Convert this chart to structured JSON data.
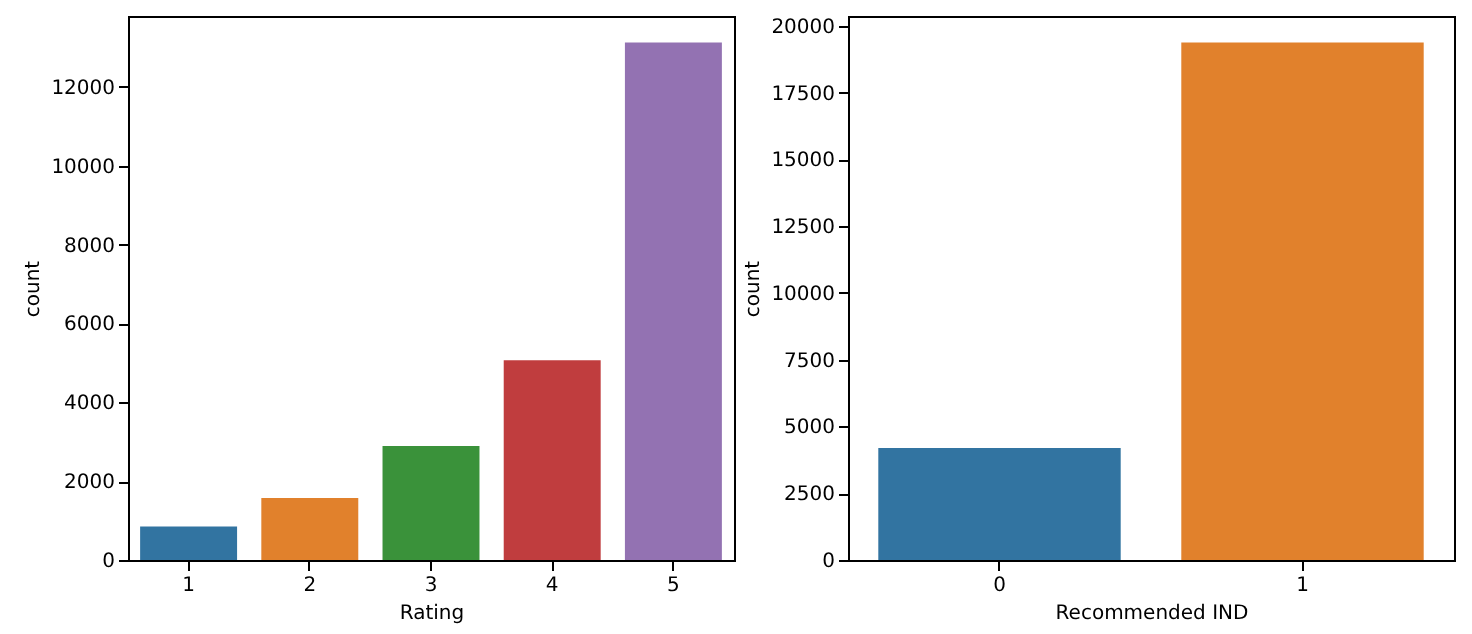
{
  "chart_data": [
    {
      "type": "bar",
      "categories": [
        "1",
        "2",
        "3",
        "4",
        "5"
      ],
      "values": [
        850,
        1570,
        2890,
        5070,
        13130
      ],
      "colors": [
        "#3274a1",
        "#e1812c",
        "#3a923a",
        "#c03d3e",
        "#9372b2"
      ],
      "xlabel": "Rating",
      "ylabel": "count",
      "ylim": [
        0,
        13800
      ],
      "yticks": [
        0,
        2000,
        4000,
        6000,
        8000,
        10000,
        12000
      ]
    },
    {
      "type": "bar",
      "categories": [
        "0",
        "1"
      ],
      "values": [
        4190,
        19380
      ],
      "colors": [
        "#3274a1",
        "#e1812c"
      ],
      "xlabel": "Recommended IND",
      "ylabel": "count",
      "ylim": [
        0,
        20370
      ],
      "yticks": [
        0,
        2500,
        5000,
        7500,
        10000,
        12500,
        15000,
        17500,
        20000
      ]
    }
  ]
}
